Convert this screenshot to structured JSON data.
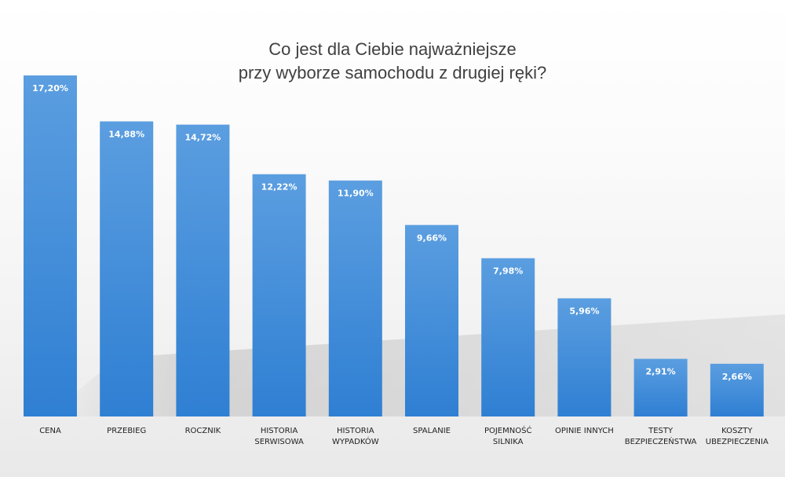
{
  "chart_data": {
    "type": "bar",
    "title": "Co jest dla Ciebie najważniejsze przy wyborze samochodu z drugiej ręki?",
    "title_lines": [
      "Co jest dla Ciebie najważniejsze",
      "przy wyborze samochodu z drugiej ręki?"
    ],
    "categories": [
      [
        "CENA"
      ],
      [
        "PRZEBIEG"
      ],
      [
        "ROCZNIK"
      ],
      [
        "HISTORIA",
        "SERWISOWA"
      ],
      [
        "HISTORIA",
        "WYPADKÓW"
      ],
      [
        "SPALANIE"
      ],
      [
        "POJEMNOŚĆ",
        "SILNIKA"
      ],
      [
        "OPINIE INNYCH"
      ],
      [
        "TESTY",
        "BEZPIECZEŃSTWA"
      ],
      [
        "KOSZTY",
        "UBEZPIECZENIA"
      ]
    ],
    "values": [
      17.2,
      14.88,
      14.72,
      12.22,
      11.9,
      9.66,
      7.98,
      5.96,
      2.91,
      2.66
    ],
    "value_labels": [
      "17,20%",
      "14,88%",
      "14,72%",
      "12,22%",
      "11,90%",
      "9,66%",
      "7,98%",
      "5,96%",
      "2,91%",
      "2,66%"
    ],
    "xlabel": "",
    "ylabel": "",
    "ylim": [
      0,
      17.2
    ],
    "grid": false,
    "legend": "none",
    "colors": {
      "bar_top": "#5b9ee0",
      "bar_bottom": "#2f7fd3",
      "shadow": "#c9c9c9"
    }
  }
}
